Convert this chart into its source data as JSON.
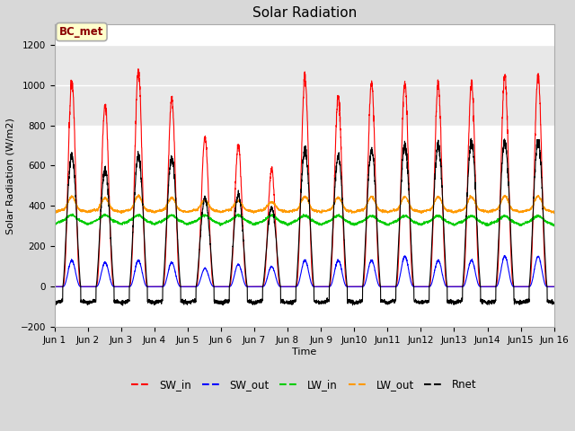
{
  "title": "Solar Radiation",
  "xlabel": "Time",
  "ylabel": "Solar Radiation (W/m2)",
  "ylim": [
    -200,
    1300
  ],
  "yticks": [
    -200,
    0,
    200,
    400,
    600,
    800,
    1000,
    1200
  ],
  "x_tick_labels": [
    "Jun 1",
    "Jun 2",
    "Jun 3",
    "Jun 4",
    "Jun 5",
    "Jun 6",
    "Jun 7",
    "Jun 8",
    "Jun 9",
    "Jun10",
    "Jun11",
    "Jun12",
    "Jun13",
    "Jun14",
    "Jun15",
    "Jun 16"
  ],
  "label_box_text": "BC_met",
  "label_box_facecolor": "#ffffcc",
  "label_box_edgecolor": "#aaaaaa",
  "label_box_textcolor": "#8b0000",
  "colors": {
    "SW_in": "#ff0000",
    "SW_out": "#0000ff",
    "LW_in": "#00cc00",
    "LW_out": "#ff9900",
    "Rnet": "#000000"
  },
  "fig_facecolor": "#d8d8d8",
  "plot_bg_color": "#ffffff",
  "n_days": 15,
  "sw_peaks": [
    1020,
    900,
    1070,
    930,
    740,
    700,
    580,
    1040,
    940,
    1010,
    1010,
    1000,
    1010,
    1050,
    1050
  ],
  "sw_out_peaks": [
    130,
    120,
    130,
    120,
    90,
    110,
    100,
    130,
    130,
    130,
    150,
    130,
    130,
    150,
    150
  ],
  "rnet_peaks": [
    650,
    580,
    645,
    640,
    440,
    455,
    390,
    680,
    650,
    680,
    700,
    700,
    720,
    720,
    720
  ],
  "lw_in_base": 310,
  "lw_out_base": 370,
  "dt_hours": 0.1
}
